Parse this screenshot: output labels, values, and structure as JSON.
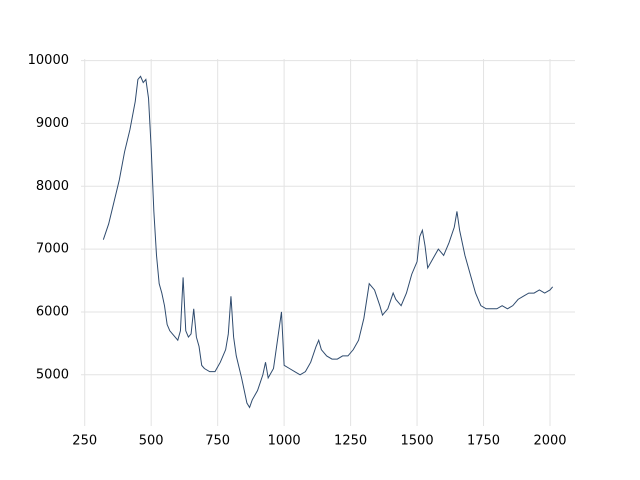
{
  "chart_data": {
    "type": "line",
    "color": "#2f4b6e",
    "grid": true,
    "xlim": [
      236,
      2094
    ],
    "ylim": [
      4185,
      10025
    ],
    "xticks": [
      250,
      500,
      750,
      1000,
      1250,
      1500,
      1750,
      2000
    ],
    "yticks": [
      5000,
      6000,
      7000,
      8000,
      9000,
      10000
    ],
    "x": [
      320,
      340,
      360,
      380,
      400,
      420,
      440,
      450,
      460,
      470,
      480,
      490,
      500,
      510,
      520,
      530,
      540,
      550,
      560,
      570,
      580,
      590,
      600,
      610,
      620,
      630,
      640,
      650,
      660,
      670,
      680,
      690,
      700,
      720,
      740,
      760,
      780,
      790,
      800,
      810,
      820,
      840,
      860,
      870,
      880,
      900,
      920,
      930,
      940,
      960,
      980,
      990,
      1000,
      1020,
      1040,
      1060,
      1080,
      1100,
      1120,
      1130,
      1140,
      1160,
      1180,
      1200,
      1220,
      1240,
      1260,
      1280,
      1300,
      1320,
      1340,
      1360,
      1370,
      1390,
      1410,
      1420,
      1440,
      1460,
      1480,
      1500,
      1510,
      1520,
      1530,
      1540,
      1560,
      1580,
      1600,
      1620,
      1640,
      1650,
      1660,
      1680,
      1700,
      1720,
      1740,
      1760,
      1780,
      1800,
      1820,
      1840,
      1860,
      1880,
      1900,
      1920,
      1940,
      1960,
      1980,
      2000,
      2010
    ],
    "values": [
      7150,
      7400,
      7750,
      8100,
      8550,
      8900,
      9350,
      9700,
      9750,
      9650,
      9700,
      9400,
      8600,
      7600,
      6900,
      6450,
      6300,
      6100,
      5800,
      5700,
      5650,
      5600,
      5550,
      5700,
      6550,
      5700,
      5600,
      5650,
      6050,
      5600,
      5450,
      5150,
      5100,
      5050,
      5050,
      5200,
      5400,
      5650,
      6250,
      5600,
      5300,
      4950,
      4550,
      4480,
      4600,
      4750,
      5000,
      5200,
      4950,
      5100,
      5700,
      6000,
      5150,
      5100,
      5050,
      5000,
      5050,
      5200,
      5450,
      5550,
      5400,
      5300,
      5250,
      5250,
      5300,
      5300,
      5400,
      5550,
      5900,
      6450,
      6350,
      6100,
      5950,
      6050,
      6300,
      6200,
      6100,
      6300,
      6600,
      6800,
      7200,
      7300,
      7050,
      6700,
      6850,
      7000,
      6900,
      7100,
      7350,
      7600,
      7300,
      6900,
      6600,
      6300,
      6100,
      6050,
      6050,
      6050,
      6100,
      6050,
      6100,
      6200,
      6250,
      6300,
      6300,
      6350,
      6300,
      6350,
      6400
    ]
  }
}
